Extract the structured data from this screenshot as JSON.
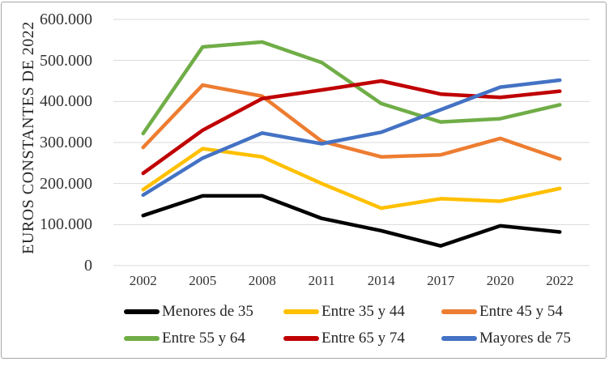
{
  "chart_data": {
    "type": "line",
    "ylabel": "EUROS CONSTANTES DE 2022",
    "categories": [
      "2002",
      "2005",
      "2008",
      "2011",
      "2014",
      "2017",
      "2020",
      "2022"
    ],
    "y_tick_labels": [
      "0",
      "100.000",
      "200.000",
      "300.000",
      "400.000",
      "500.000",
      "600.000"
    ],
    "ylim": [
      0,
      600000
    ],
    "grid": "horizontal",
    "gridline_color": "#D9D9D9",
    "frame_border_color": "#A6A6A6",
    "legend_position": "bottom",
    "series": [
      {
        "name": "Menores de 35",
        "color": "#000000",
        "values": [
          122000,
          170000,
          170000,
          115000,
          85000,
          48000,
          97000,
          82000
        ]
      },
      {
        "name": "Entre 35 y 44",
        "color": "#FFC000",
        "values": [
          185000,
          285000,
          265000,
          200000,
          140000,
          163000,
          157000,
          188000
        ]
      },
      {
        "name": "Entre 45 y 54",
        "color": "#ED7D31",
        "values": [
          288000,
          440000,
          413000,
          303000,
          265000,
          270000,
          310000,
          260000
        ]
      },
      {
        "name": "Entre 55 y 64",
        "color": "#70AD47",
        "values": [
          322000,
          533000,
          545000,
          495000,
          395000,
          350000,
          358000,
          392000
        ]
      },
      {
        "name": "Entre 65 y 74",
        "color": "#C00000",
        "values": [
          225000,
          330000,
          407000,
          428000,
          450000,
          418000,
          410000,
          425000
        ]
      },
      {
        "name": "Mayores de 75",
        "color": "#4472C4",
        "values": [
          172000,
          262000,
          323000,
          297000,
          325000,
          380000,
          435000,
          452000
        ]
      }
    ]
  }
}
